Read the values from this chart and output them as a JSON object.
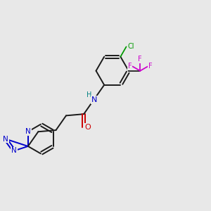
{
  "bg_color": "#e8e8e8",
  "bond_color": "#1a1a1a",
  "N_color": "#0000cc",
  "O_color": "#cc0000",
  "Cl_color": "#009900",
  "F_color": "#cc00cc",
  "H_color": "#008080",
  "bond_lw": 1.4,
  "fig_size": [
    3.0,
    3.0
  ],
  "dpi": 100,
  "xlim": [
    0,
    10
  ],
  "ylim": [
    0,
    10
  ]
}
